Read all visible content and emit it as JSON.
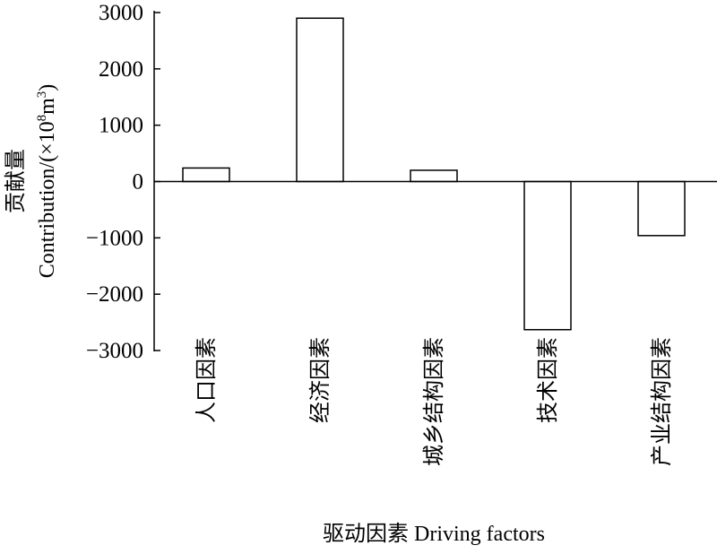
{
  "chart_data": {
    "type": "bar",
    "categories": [
      "人口因素",
      "经济因素",
      "城乡结构因素",
      "技术因素",
      "产业结构因素"
    ],
    "values": [
      240,
      2900,
      200,
      -2630,
      -960
    ],
    "ylim": [
      -3000,
      3000
    ],
    "yticks": [
      3000,
      2000,
      1000,
      0,
      -1000,
      -2000,
      -3000
    ],
    "ylabel_cn": "贡献量",
    "ylabel_en": "Contribution/(×10",
    "ylabel_exp1": "8",
    "ylabel_mid": "m",
    "ylabel_exp2": "3",
    "ylabel_close": ")",
    "xlabel": "驱动因素 Driving factors",
    "grid": false,
    "bar_fill": "#ffffff",
    "bar_stroke": "#000000"
  }
}
